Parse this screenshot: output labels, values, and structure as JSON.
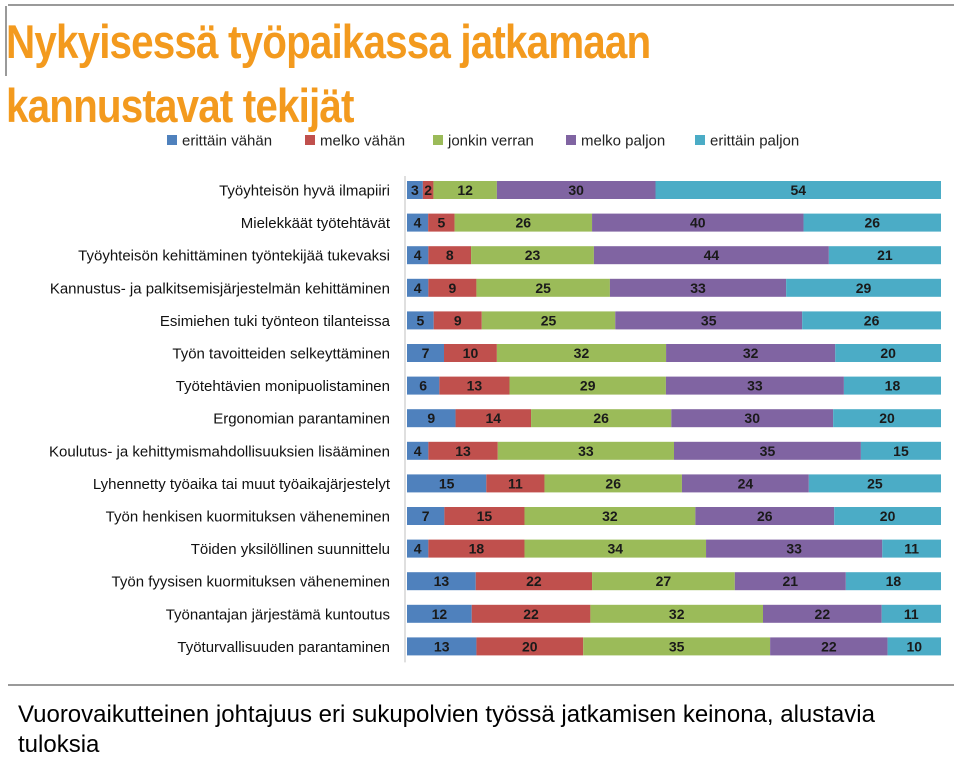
{
  "page": {
    "title_line1": "Nykyisessä työpaikassa jatkamaan",
    "title_line2": "kannustavat tekijät",
    "caption": "Vuorovaikutteinen johtajuus eri sukupolvien työssä jatkamisen keinona, alustavia tuloksia",
    "title_color": "#f39a1e"
  },
  "chart_data": {
    "type": "bar",
    "orientation": "horizontal",
    "stacked": "100%",
    "legend_position": "top",
    "title": "",
    "xlabel": "",
    "ylabel": "",
    "categories": [
      "Työyhteisön hyvä ilmapiiri",
      "Mielekkäät työtehtävät",
      "Työyhteisön kehittäminen työntekijää tukevaksi",
      "Kannustus- ja palkitsemisjärjestelmän kehittäminen",
      "Esimiehen tuki työnteon tilanteissa",
      "Työn tavoitteiden selkeyttäminen",
      "Työtehtävien monipuolistaminen",
      "Ergonomian parantaminen",
      "Koulutus- ja kehittymismahdollisuuksien lisääminen",
      "Lyhennetty työaika tai muut työaikajärjestelyt",
      "Työn henkisen kuormituksen väheneminen",
      "Töiden yksilöllinen suunnittelu",
      "Työn fyysisen kuormituksen väheneminen",
      "Työnantajan järjestämä kuntoutus",
      "Työturvallisuuden parantaminen"
    ],
    "series": [
      {
        "name": "erittäin vähän",
        "color": "#4f81bd",
        "values": [
          3,
          4,
          4,
          4,
          5,
          7,
          6,
          9,
          4,
          15,
          7,
          4,
          13,
          12,
          13
        ]
      },
      {
        "name": "melko vähän",
        "color": "#c0504d",
        "values": [
          2,
          5,
          8,
          9,
          9,
          10,
          13,
          14,
          13,
          11,
          15,
          18,
          22,
          22,
          20
        ]
      },
      {
        "name": "jonkin verran",
        "color": "#9bbb59",
        "values": [
          12,
          26,
          23,
          25,
          25,
          32,
          29,
          26,
          33,
          26,
          32,
          34,
          27,
          32,
          35
        ]
      },
      {
        "name": "melko paljon",
        "color": "#8064a2",
        "values": [
          30,
          40,
          44,
          33,
          35,
          32,
          33,
          30,
          35,
          24,
          26,
          33,
          21,
          22,
          22
        ]
      },
      {
        "name": "erittäin paljon",
        "color": "#4bacc6",
        "values": [
          54,
          26,
          21,
          29,
          26,
          20,
          18,
          20,
          15,
          25,
          20,
          11,
          18,
          11,
          10
        ]
      }
    ]
  }
}
